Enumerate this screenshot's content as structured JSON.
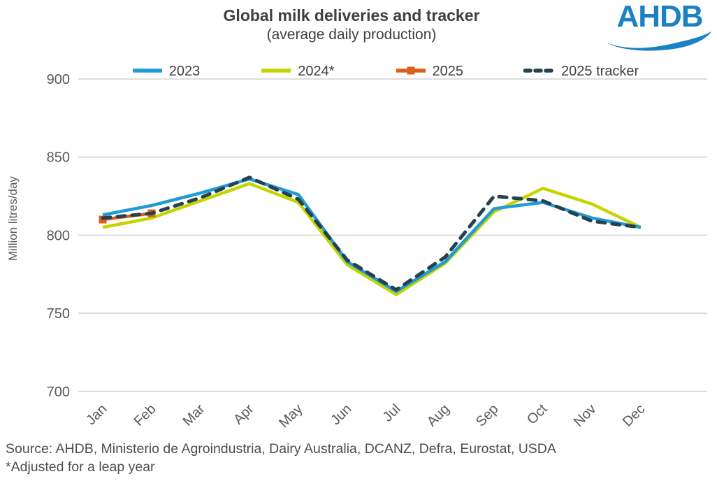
{
  "header": {
    "title": "Global milk deliveries and tracker",
    "subtitle": "(average daily production)"
  },
  "logo": {
    "text": "AHDB",
    "color": "#1b80c4"
  },
  "footer": {
    "source": "Source: AHDB, Ministerio de Agroindustria, Dairy Australia, DCANZ, Defra, Eurostat, USDA",
    "footnote": "*Adjusted for a leap year"
  },
  "chart_data": {
    "type": "line",
    "title": "Global milk deliveries and tracker",
    "subtitle": "(average daily production)",
    "ylabel": "Million litres/day",
    "ylim": [
      700,
      900
    ],
    "yticks": [
      900,
      850,
      800,
      750,
      700
    ],
    "grid": "horizontal",
    "gridline_color": "#d9d9d9",
    "tick_color": "#595959",
    "legend_position": "top",
    "categories": [
      "Jan",
      "Feb",
      "Mar",
      "Apr",
      "May",
      "Jun",
      "Jul",
      "Aug",
      "Sep",
      "Oct",
      "Nov",
      "Dec"
    ],
    "series": [
      {
        "name": "2023",
        "color": "#209bd5",
        "dash": false,
        "marker": null,
        "values": [
          813,
          819,
          827,
          836,
          826,
          783,
          764,
          783,
          817,
          821,
          811,
          805
        ]
      },
      {
        "name": "2024*",
        "color": "#c5d400",
        "dash": false,
        "marker": null,
        "values": [
          805,
          811,
          822,
          833,
          821,
          781,
          762,
          782,
          815,
          830,
          820,
          805
        ]
      },
      {
        "name": "2025",
        "color": "#dc5e1c",
        "dash": false,
        "marker": "square",
        "values": [
          810,
          814,
          null,
          null,
          null,
          null,
          null,
          null,
          null,
          null,
          null,
          null
        ]
      },
      {
        "name": "2025 tracker",
        "color": "#26414e",
        "dash": true,
        "marker": null,
        "values": [
          811,
          814,
          824,
          837,
          823,
          784,
          765,
          786,
          825,
          822,
          809,
          805
        ]
      }
    ],
    "z_order": [
      1,
      0,
      2,
      3
    ]
  }
}
